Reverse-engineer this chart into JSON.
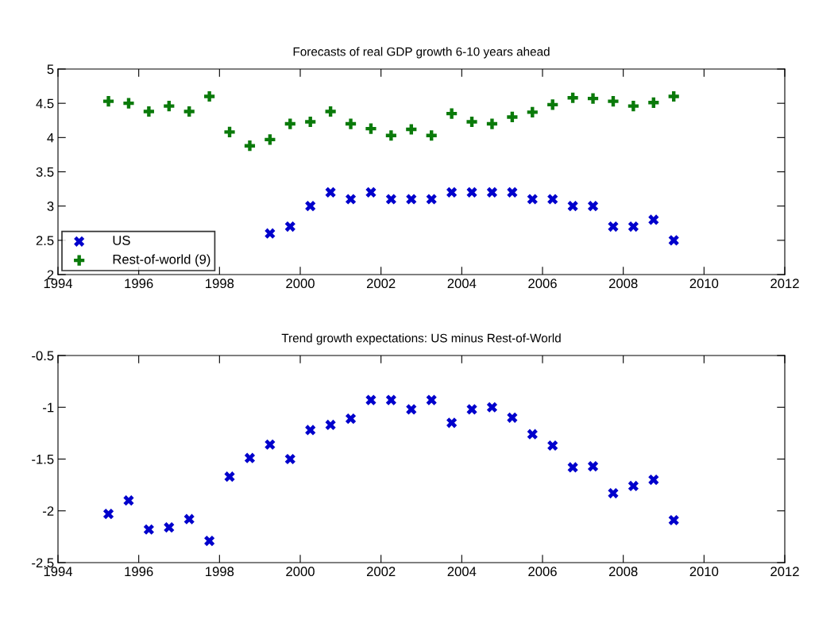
{
  "chart_data": [
    {
      "type": "scatter",
      "title": "Forecasts of real GDP growth 6-10 years ahead",
      "x": [
        1995.25,
        1995.75,
        1996.25,
        1996.75,
        1997.25,
        1997.75,
        1998.25,
        1998.75,
        1999.25,
        1999.75,
        2000.25,
        2000.75,
        2001.25,
        2001.75,
        2002.25,
        2002.75,
        2003.25,
        2003.75,
        2004.25,
        2004.75,
        2005.25,
        2005.75,
        2006.25,
        2006.75,
        2007.25,
        2007.75,
        2008.25,
        2008.75,
        2009.25
      ],
      "series": [
        {
          "name": "US",
          "color": "#0000cc",
          "marker": "cross",
          "values": [
            null,
            null,
            null,
            null,
            null,
            null,
            null,
            null,
            2.6,
            2.7,
            3.0,
            3.2,
            3.1,
            3.2,
            3.1,
            3.1,
            3.1,
            3.2,
            3.2,
            3.2,
            3.2,
            3.1,
            3.1,
            3.0,
            3.0,
            2.7,
            2.7,
            2.8,
            2.5
          ]
        },
        {
          "name": "Rest-of-world (9)",
          "color": "#0a7a0a",
          "marker": "plus",
          "values": [
            4.53,
            4.5,
            4.38,
            4.46,
            4.38,
            4.6,
            4.08,
            3.88,
            3.97,
            4.2,
            4.23,
            4.38,
            4.2,
            4.13,
            4.03,
            4.12,
            4.03,
            4.35,
            4.23,
            4.2,
            4.3,
            4.37,
            4.48,
            4.58,
            4.57,
            4.53,
            4.46,
            4.51,
            4.6
          ]
        }
      ],
      "xlim": [
        1994,
        2012
      ],
      "xticks": [
        1994,
        1996,
        1998,
        2000,
        2002,
        2004,
        2006,
        2008,
        2010,
        2012
      ],
      "ylim": [
        2,
        5
      ],
      "yticks": [
        2,
        2.5,
        3,
        3.5,
        4,
        4.5,
        5
      ],
      "legend": "bottom left",
      "grid": false
    },
    {
      "type": "scatter",
      "title": "Trend growth expectations: US minus Rest-of-World",
      "x": [
        1995.25,
        1995.75,
        1996.25,
        1996.75,
        1997.25,
        1997.75,
        1998.25,
        1998.75,
        1999.25,
        1999.75,
        2000.25,
        2000.75,
        2001.25,
        2001.75,
        2002.25,
        2002.75,
        2003.25,
        2003.75,
        2004.25,
        2004.75,
        2005.25,
        2005.75,
        2006.25,
        2006.75,
        2007.25,
        2007.75,
        2008.25,
        2008.75,
        2009.25
      ],
      "series": [
        {
          "color": "#0000cc",
          "marker": "cross",
          "values": [
            -2.03,
            -1.9,
            -2.18,
            -2.16,
            -2.08,
            -2.29,
            -1.67,
            -1.49,
            -1.36,
            -1.5,
            -1.22,
            -1.17,
            -1.11,
            -0.93,
            -0.93,
            -1.02,
            -0.93,
            -1.15,
            -1.02,
            -1.0,
            -1.1,
            -1.26,
            -1.37,
            -1.58,
            -1.57,
            -1.83,
            -1.76,
            -1.7,
            -2.09
          ]
        }
      ],
      "xlim": [
        1994,
        2012
      ],
      "xticks": [
        1994,
        1996,
        1998,
        2000,
        2002,
        2004,
        2006,
        2008,
        2010,
        2012
      ],
      "ylim": [
        -2.5,
        -0.5
      ],
      "yticks": [
        -2.5,
        -2,
        -1.5,
        -1,
        -0.5
      ],
      "grid": false
    }
  ]
}
